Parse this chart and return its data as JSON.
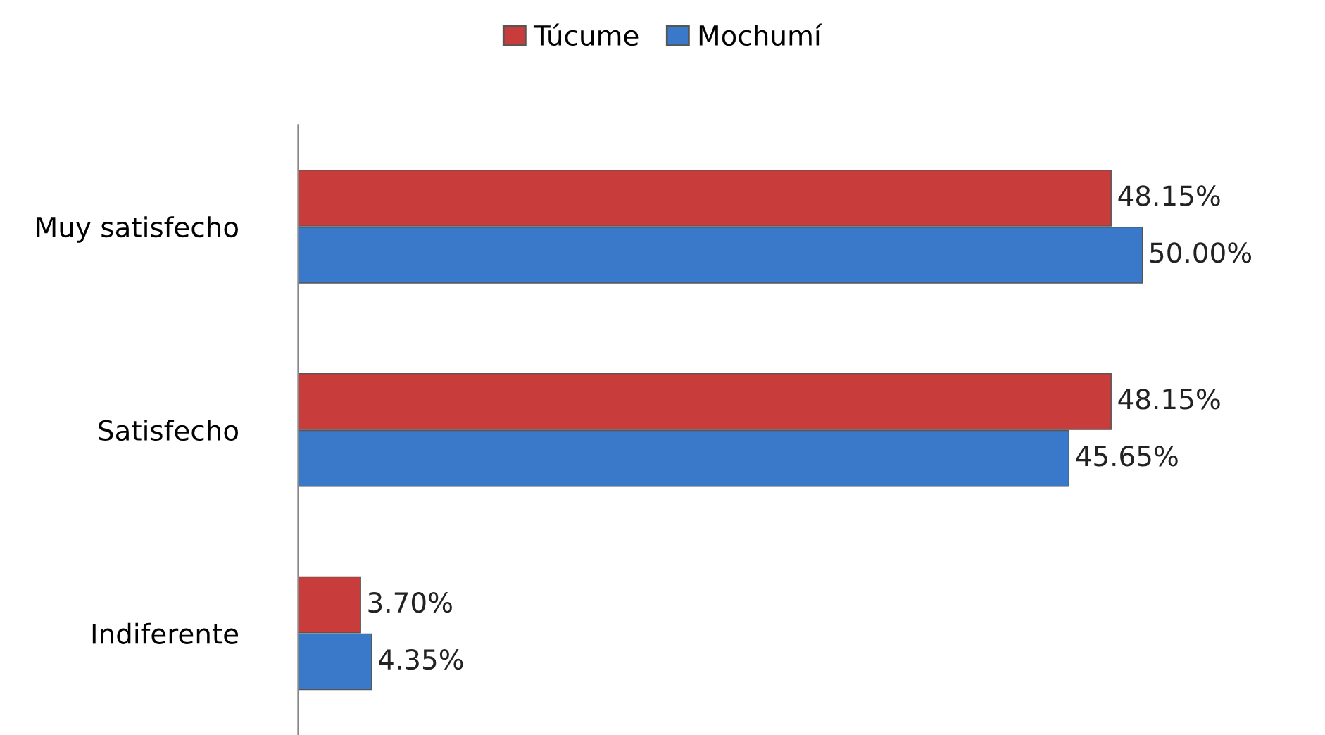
{
  "chart_data": {
    "type": "bar",
    "orientation": "horizontal",
    "categories": [
      "Muy satisfecho",
      "Satisfecho",
      "Indiferente"
    ],
    "series": [
      {
        "name": "Túcume",
        "color": "#c83c3c",
        "values": [
          48.15,
          48.15,
          3.7
        ],
        "value_labels": [
          "48.15%",
          "48.15%",
          "3.70%"
        ]
      },
      {
        "name": "Mochumí",
        "color": "#3a78c9",
        "values": [
          50.0,
          45.65,
          4.35
        ],
        "value_labels": [
          "50.00%",
          "45.65%",
          "4.35%"
        ]
      }
    ],
    "legend": "top",
    "grid": false
  }
}
